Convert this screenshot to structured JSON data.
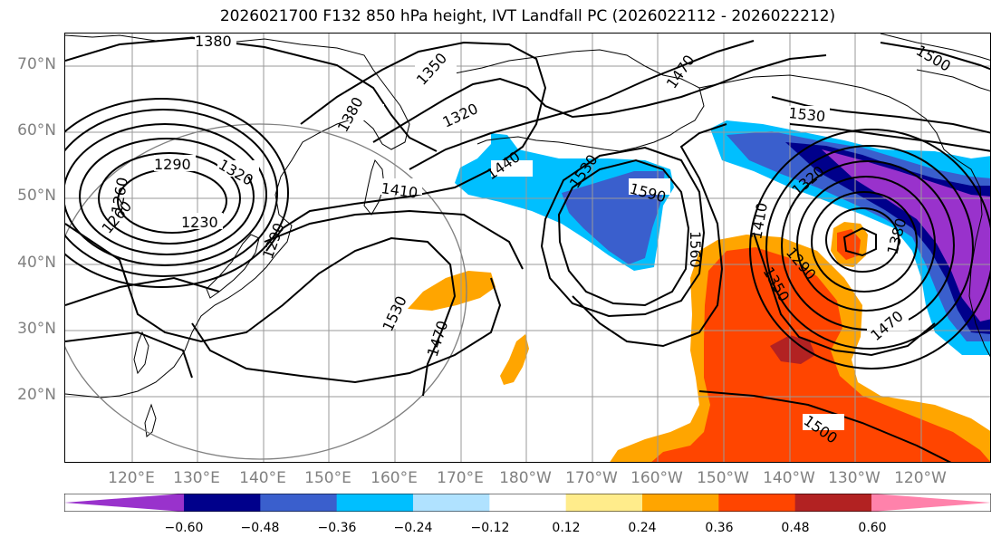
{
  "title": "2026021700 F132 850 hPa height, IVT Landfall PC (2026022112 - 2026022212)",
  "lat_labels": [
    "70°N",
    "60°N",
    "50°N",
    "40°N",
    "30°N",
    "20°N"
  ],
  "lon_labels": [
    "120°E",
    "130°E",
    "140°E",
    "150°E",
    "160°E",
    "170°E",
    "180°W",
    "170°W",
    "160°W",
    "150°W",
    "140°W",
    "130°W",
    "120°W"
  ],
  "contour_labels": [
    "1380",
    "1350",
    "1320",
    "1380",
    "1290",
    "1320",
    "1230",
    "1260",
    "1260",
    "1290",
    "1410",
    "1440",
    "1530",
    "1590",
    "1470",
    "1530",
    "1560",
    "1410",
    "1320",
    "1290",
    "1350",
    "1380",
    "1470",
    "1530",
    "1470",
    "1500",
    "1500"
  ],
  "colorbar": {
    "ticks": [
      "−0.60",
      "−0.48",
      "−0.36",
      "−0.24",
      "−0.12",
      "0.12",
      "0.24",
      "0.36",
      "0.48",
      "0.60"
    ],
    "colors": [
      "#9932CC",
      "#00008B",
      "#3A5FCD",
      "#00BFFF",
      "#B0E2FF",
      "#FFFFFF",
      "#FFEC8B",
      "#FFA500",
      "#FF4500",
      "#B22222",
      "#FF82AB"
    ]
  },
  "colors": {
    "neg_strong": "#9932CC",
    "neg_navy": "#00008B",
    "neg_blue": "#3A5FCD",
    "neg_sky": "#00BFFF",
    "pos_orange": "#FFA500",
    "pos_red": "#FF4500",
    "pos_dark": "#B22222"
  }
}
